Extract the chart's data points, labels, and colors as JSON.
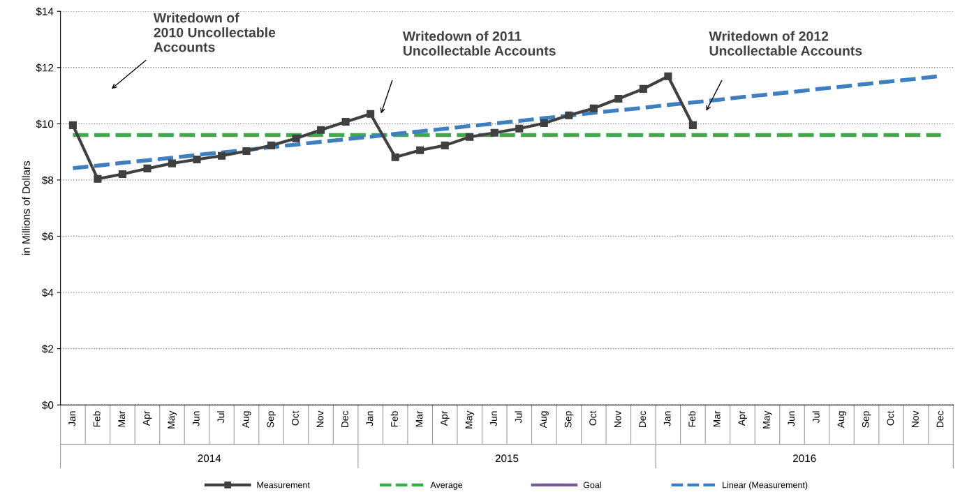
{
  "chart_data": {
    "type": "line",
    "ylabel": "in Millions of Dollars",
    "categories": [
      "Jan",
      "Feb",
      "Mar",
      "Apr",
      "May",
      "Jun",
      "Jul",
      "Aug",
      "Sep",
      "Oct",
      "Nov",
      "Dec",
      "Jan",
      "Feb",
      "Mar",
      "Apr",
      "May",
      "Jun",
      "Jul",
      "Aug",
      "Sep",
      "Oct",
      "Nov",
      "Dec",
      "Jan",
      "Feb",
      "Mar",
      "Apr",
      "May",
      "Jun",
      "Jul",
      "Aug",
      "Sep",
      "Oct",
      "Nov",
      "Dec"
    ],
    "series": [
      {
        "name": "Measurement",
        "color": "#404040",
        "marker": "square",
        "line_style": "solid",
        "values": [
          9.95,
          8.04,
          8.21,
          8.41,
          8.59,
          8.73,
          8.86,
          9.03,
          9.23,
          9.48,
          9.78,
          10.07,
          10.35,
          8.81,
          9.06,
          9.23,
          9.53,
          9.68,
          9.83,
          10.02,
          10.3,
          10.55,
          10.89,
          11.24,
          11.69,
          9.95,
          null,
          null,
          null,
          null,
          null,
          null,
          null,
          null,
          null,
          null
        ]
      },
      {
        "name": "Average",
        "color": "#3daa4e",
        "line_style": "dashed",
        "values": [
          9.6,
          9.6,
          9.6,
          9.6,
          9.6,
          9.6,
          9.6,
          9.6,
          9.6,
          9.6,
          9.6,
          9.6,
          9.6,
          9.6,
          9.6,
          9.6,
          9.6,
          9.6,
          9.6,
          9.6,
          9.6,
          9.6,
          9.6,
          9.6,
          9.6,
          9.6,
          9.6,
          9.6,
          9.6,
          9.6,
          9.6,
          9.6,
          9.6,
          9.6,
          9.6,
          9.6
        ]
      },
      {
        "name": "Goal",
        "color": "#7a5a96",
        "line_style": "solid",
        "values": [
          null,
          null,
          null,
          null,
          null,
          null,
          null,
          null,
          null,
          null,
          null,
          null,
          null,
          null,
          null,
          null,
          null,
          null,
          null,
          null,
          null,
          null,
          null,
          null,
          null,
          null,
          null,
          null,
          null,
          null,
          null,
          null,
          null,
          null,
          null,
          null
        ]
      },
      {
        "name": "Linear (Measurement)",
        "color": "#3f7fc0",
        "line_style": "dashed",
        "values": [
          8.42,
          8.51,
          8.61,
          8.7,
          8.79,
          8.89,
          8.98,
          9.07,
          9.17,
          9.26,
          9.36,
          9.45,
          9.54,
          9.64,
          9.73,
          9.82,
          9.92,
          10.01,
          10.1,
          10.2,
          10.29,
          10.39,
          10.48,
          10.57,
          10.67,
          10.76,
          10.85,
          10.95,
          11.04,
          11.13,
          11.23,
          11.32,
          11.42,
          11.51,
          11.6,
          11.7
        ]
      }
    ],
    "ylim": [
      0,
      14
    ],
    "yticks": [
      {
        "value": 0,
        "label": "$0"
      },
      {
        "value": 2,
        "label": "$2"
      },
      {
        "value": 4,
        "label": "$4"
      },
      {
        "value": 6,
        "label": "$6"
      },
      {
        "value": 8,
        "label": "$8"
      },
      {
        "value": 10,
        "label": "$10"
      },
      {
        "value": 12,
        "label": "$12"
      },
      {
        "value": 14,
        "label": "$14"
      }
    ],
    "grid": "y",
    "legend": "bottom",
    "annotations": [
      "Writedown of\n2010 Uncollectable\nAccounts",
      "Writedown of 2011\nUncollectable Accounts",
      "Writedown of 2012\nUncollectable Accounts",
      "2014",
      "2015",
      "2016"
    ]
  }
}
